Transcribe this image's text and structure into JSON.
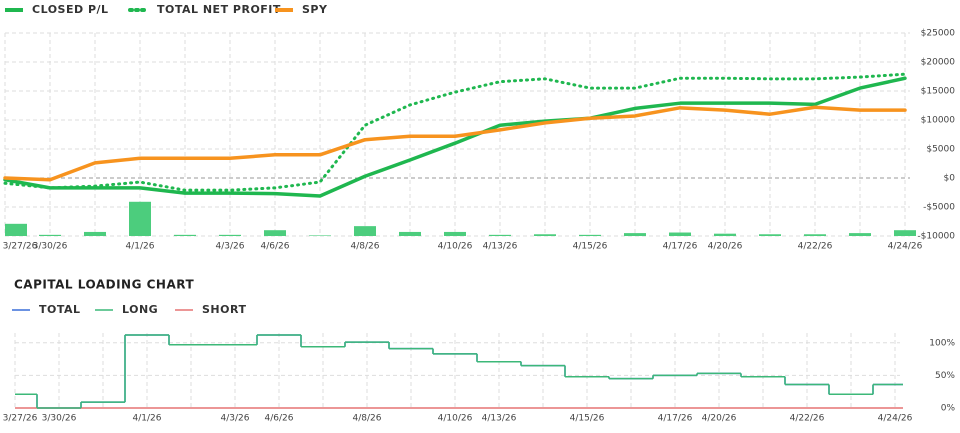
{
  "chart_data": [
    {
      "type": "line",
      "categories": [
        "3/27/26",
        "3/30/26",
        null,
        "4/1/26",
        null,
        "4/3/26",
        "4/6/26",
        null,
        "4/8/26",
        null,
        "4/10/26",
        "4/13/26",
        null,
        "4/15/26",
        null,
        "4/17/26",
        "4/20/26",
        null,
        "4/22/26",
        null,
        "4/24/26"
      ],
      "series": [
        {
          "name": "CLOSED P/L",
          "color": "#1fb74f",
          "dash": false,
          "values": [
            -300,
            -1700,
            -1700,
            -1700,
            -2600,
            -2600,
            -2700,
            -3100,
            300,
            3100,
            6000,
            9100,
            9800,
            10300,
            12000,
            12900,
            12900,
            12900,
            12700,
            15500,
            17200
          ]
        },
        {
          "name": "TOTAL NET PROFIT",
          "color": "#1fb74f",
          "dash": true,
          "values": [
            -900,
            -1700,
            -1400,
            -700,
            -2100,
            -2100,
            -1700,
            -700,
            9100,
            12600,
            14800,
            16600,
            17100,
            15500,
            15500,
            17200,
            17200,
            17100,
            17100,
            17400,
            17900
          ]
        },
        {
          "name": "SPY",
          "color": "#f7931e",
          "dash": false,
          "values": [
            0,
            -300,
            2600,
            3400,
            3400,
            3400,
            4000,
            4000,
            6600,
            7200,
            7200,
            8300,
            9500,
            10300,
            10700,
            12100,
            11700,
            11000,
            12200,
            11700,
            11700
          ]
        }
      ],
      "bars": {
        "color": "#4ccd7d",
        "values": [
          -7900,
          -9800,
          -9300,
          -4100,
          -9800,
          -9800,
          -9000,
          -9900,
          -8300,
          -9300,
          -9300,
          -9800,
          -9700,
          -9800,
          -9500,
          -9400,
          -9600,
          -9700,
          -9700,
          -9500,
          -9000
        ]
      },
      "ylim": [
        -10000,
        25000
      ],
      "yticks": [
        {
          "value": -10000,
          "label": "-$10000"
        },
        {
          "value": -5000,
          "label": "-$5000"
        },
        {
          "value": 0,
          "label": "$0"
        },
        {
          "value": 5000,
          "label": "$5000"
        },
        {
          "value": 10000,
          "label": "$10000"
        },
        {
          "value": 15000,
          "label": "$15000"
        },
        {
          "value": 20000,
          "label": "$20000"
        },
        {
          "value": 25000,
          "label": "$25000"
        }
      ],
      "grid": true
    },
    {
      "type": "step",
      "title": "CAPITAL LOADING CHART",
      "categories": [
        "3/27/26",
        "3/30/26",
        null,
        "4/1/26",
        null,
        "4/3/26",
        "4/6/26",
        null,
        "4/8/26",
        null,
        "4/10/26",
        "4/13/26",
        null,
        "4/15/26",
        null,
        "4/17/26",
        "4/20/26",
        null,
        "4/22/26",
        null,
        "4/24/26"
      ],
      "series": [
        {
          "name": "TOTAL",
          "color": "#3a6fd8",
          "values": [
            21,
            0,
            9,
            112,
            97,
            97,
            112,
            94,
            101,
            91,
            83,
            71,
            65,
            48,
            45,
            50,
            53,
            48,
            36,
            21,
            36
          ]
        },
        {
          "name": "LONG",
          "color": "#3cb878",
          "values": [
            21,
            0,
            9,
            112,
            97,
            97,
            112,
            94,
            101,
            91,
            83,
            71,
            65,
            48,
            45,
            50,
            53,
            48,
            36,
            21,
            36
          ]
        },
        {
          "name": "SHORT",
          "color": "#e57373",
          "values": [
            0,
            0,
            0,
            0,
            0,
            0,
            0,
            0,
            0,
            0,
            0,
            0,
            0,
            0,
            0,
            0,
            0,
            0,
            0,
            0,
            0
          ]
        }
      ],
      "ylim": [
        0,
        115
      ],
      "yticks": [
        {
          "value": 0,
          "label": "0%"
        },
        {
          "value": 50,
          "label": "50%"
        },
        {
          "value": 100,
          "label": "100%"
        }
      ],
      "grid": true
    }
  ]
}
